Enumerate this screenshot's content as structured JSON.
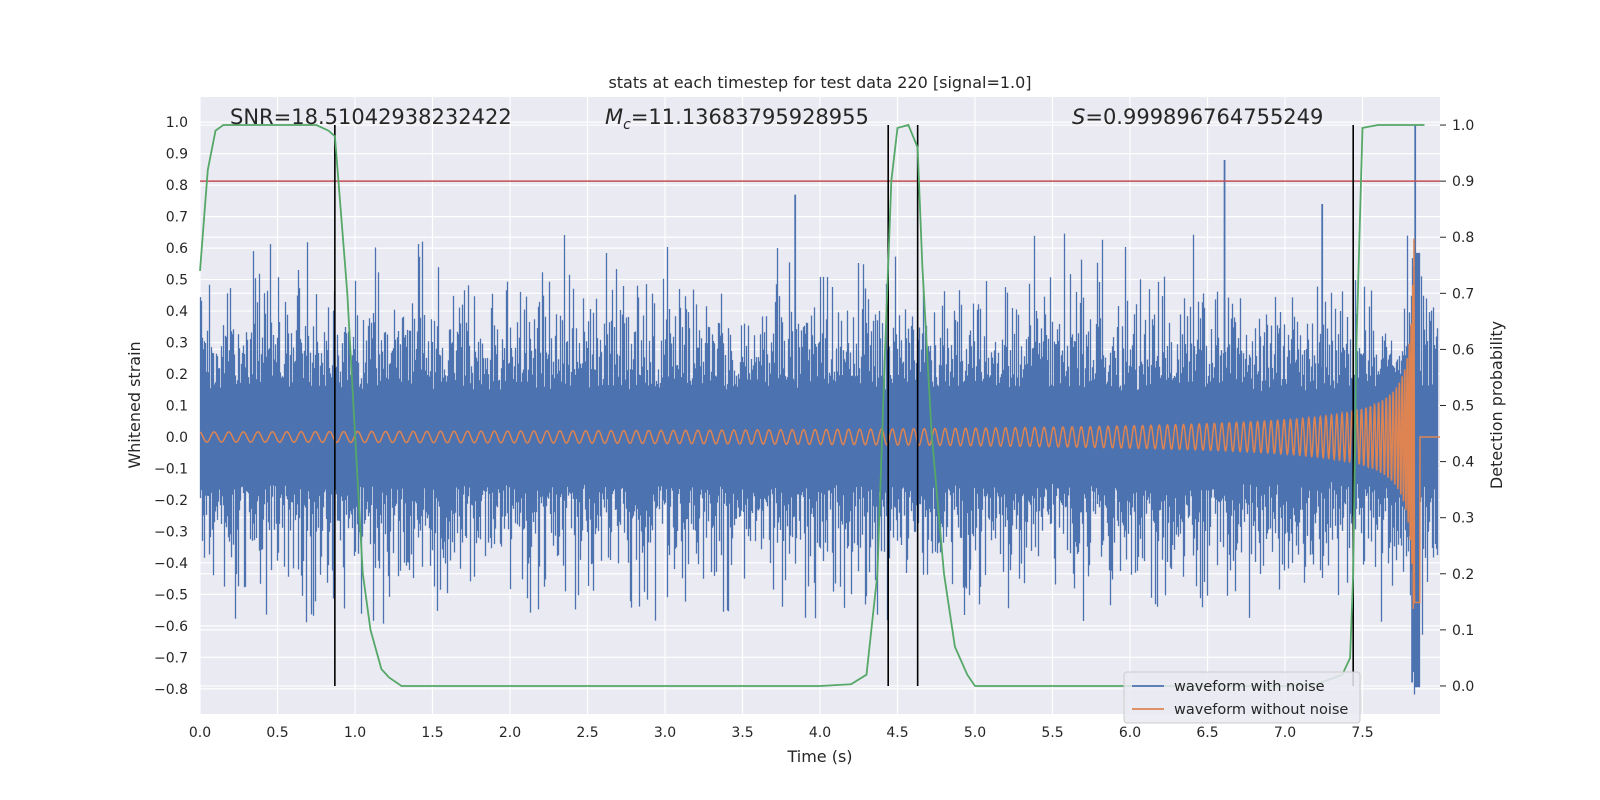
{
  "chart_data": {
    "type": "line",
    "title": "stats at each timestep for test data 220 [signal=1.0]",
    "xlabel": "Time (s)",
    "ylabel_left": "Whitened strain",
    "ylabel_right": "Detection probability",
    "xlim": [
      0,
      8.0
    ],
    "ylim_left": [
      -0.88,
      1.08
    ],
    "ylim_right": [
      -0.05,
      1.05
    ],
    "x_ticks": [
      "0.0",
      "0.5",
      "1.0",
      "1.5",
      "2.0",
      "2.5",
      "3.0",
      "3.5",
      "4.0",
      "4.5",
      "5.0",
      "5.5",
      "6.0",
      "6.5",
      "7.0",
      "7.5"
    ],
    "y_ticks_left": [
      "−0.8",
      "−0.7",
      "−0.6",
      "−0.5",
      "−0.4",
      "−0.3",
      "−0.2",
      "−0.1",
      "0.0",
      "0.1",
      "0.2",
      "0.3",
      "0.4",
      "0.5",
      "0.6",
      "0.7",
      "0.8",
      "0.9",
      "1.0"
    ],
    "y_ticks_right": [
      "0.0",
      "0.1",
      "0.2",
      "0.3",
      "0.4",
      "0.5",
      "0.6",
      "0.7",
      "0.8",
      "0.9",
      "1.0"
    ],
    "grid": true,
    "legend_position": "lower right",
    "annotations": {
      "snr": "SNR=18.51042938232422",
      "mc_symbol": "M",
      "mc_subscript": "c",
      "mc_value": "=11.13683795928955",
      "s_symbol": "S",
      "s_value": "=0.999896764755249"
    },
    "threshold": {
      "value": 0.9,
      "color": "#c44e52"
    },
    "vlines": [
      0.87,
      4.44,
      4.63,
      7.44
    ],
    "series": [
      {
        "name": "waveform with noise",
        "color": "#4c72b0",
        "noise_envelope": 0.28,
        "spike_max": 0.99
      },
      {
        "name": "waveform without noise",
        "color": "#dd8452",
        "chirp_start_amp": 0.016,
        "merger_time": 7.84,
        "merger_peak": 0.64
      },
      {
        "name": "detection probability",
        "color": "#55a868",
        "x": [
          0.0,
          0.05,
          0.1,
          0.15,
          0.3,
          0.75,
          0.83,
          0.87,
          0.95,
          1.0,
          1.05,
          1.1,
          1.17,
          1.22,
          1.3,
          1.6,
          2.0,
          3.0,
          4.0,
          4.2,
          4.3,
          4.37,
          4.42,
          4.46,
          4.5,
          4.57,
          4.63,
          4.66,
          4.72,
          4.8,
          4.87,
          4.95,
          5.0,
          5.5,
          6.0,
          6.5,
          7.0,
          7.2,
          7.37,
          7.42,
          7.44,
          7.46,
          7.5,
          7.6,
          7.8,
          7.9
        ],
        "y": [
          0.74,
          0.92,
          0.99,
          1.0,
          1.0,
          1.0,
          0.99,
          0.98,
          0.7,
          0.45,
          0.2,
          0.1,
          0.03,
          0.015,
          0.0,
          0.0,
          0.0,
          0.0,
          0.0,
          0.003,
          0.02,
          0.2,
          0.6,
          0.9,
          0.995,
          1.0,
          0.96,
          0.75,
          0.45,
          0.2,
          0.07,
          0.02,
          0.0,
          0.0,
          0.0,
          0.0,
          0.0,
          0.003,
          0.02,
          0.05,
          0.2,
          0.6,
          0.995,
          1.0,
          1.0,
          1.0
        ]
      }
    ]
  }
}
